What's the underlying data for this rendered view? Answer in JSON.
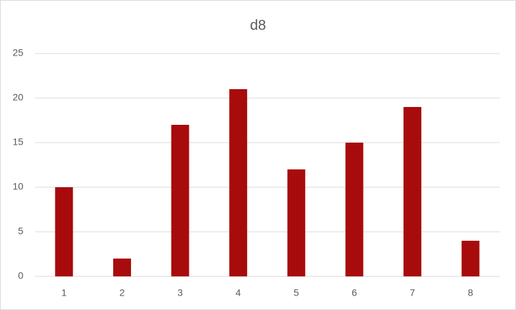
{
  "chart_data": {
    "type": "bar",
    "title": "d8",
    "categories": [
      "1",
      "2",
      "3",
      "4",
      "5",
      "6",
      "7",
      "8"
    ],
    "values": [
      10,
      2,
      17,
      21,
      12,
      15,
      19,
      4
    ],
    "color": "#a80b0b",
    "ylim": [
      0,
      25
    ],
    "yticks": [
      0,
      5,
      10,
      15,
      20,
      25
    ],
    "grid": true
  }
}
